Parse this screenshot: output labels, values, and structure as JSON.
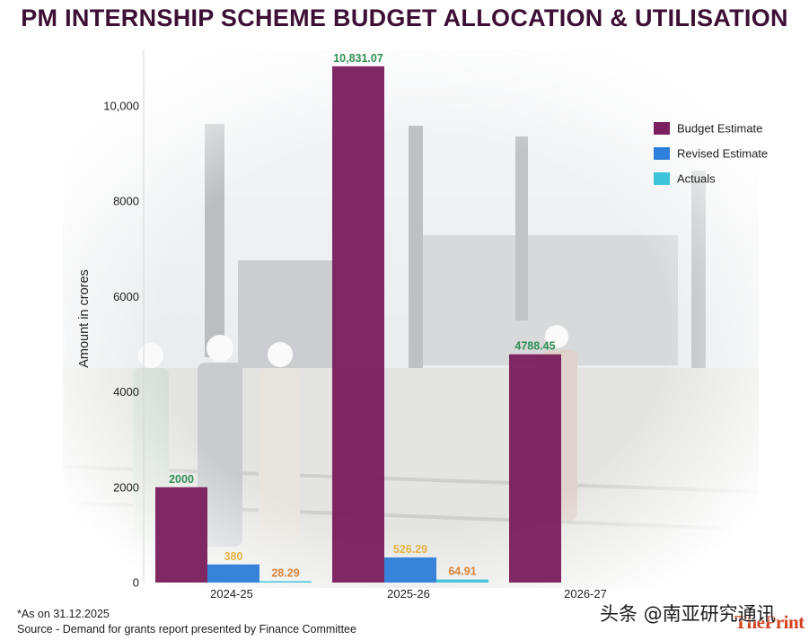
{
  "chart_data": {
    "type": "bar",
    "title": "PM INTERNSHIP SCHEME BUDGET ALLOCATION & UTILISATION",
    "categories": [
      "2024-25",
      "2025-26",
      "2026-27"
    ],
    "series": [
      {
        "name": "Budget Estimate",
        "values": [
          2000,
          10831.07,
          4788.45
        ],
        "data_labels": [
          "2000",
          "10,831.07",
          "4788.45"
        ],
        "color": "#7b1f5e",
        "label_color": "#2f8f55"
      },
      {
        "name": "Revised Estimate",
        "values": [
          380,
          526.29,
          null
        ],
        "data_labels": [
          "380",
          "526.29",
          null
        ],
        "color": "#2e7fd9",
        "label_color": "#e6b545"
      },
      {
        "name": "Actuals",
        "values": [
          28.29,
          64.91,
          null
        ],
        "data_labels": [
          "28.29",
          "64.91",
          null
        ],
        "color": "#3ec4da",
        "label_color": "#db8338"
      }
    ],
    "xlabel": "",
    "ylabel": "Amount in crores",
    "ylim": [
      0,
      11000
    ],
    "yticks": [
      0,
      2000,
      4000,
      6000,
      8000,
      10000
    ],
    "ytick_labels": [
      "0",
      "2000",
      "4000",
      "6000",
      "8000",
      "10,000"
    ],
    "legend": "right",
    "grid": false
  },
  "footnotes": {
    "as_on": "*As on 31.12.2025",
    "source": "Source - Demand for grants report presented by Finance Committee"
  },
  "watermark": {
    "text": "头条 @南亚研究通讯",
    "logo": "ThePrint"
  }
}
